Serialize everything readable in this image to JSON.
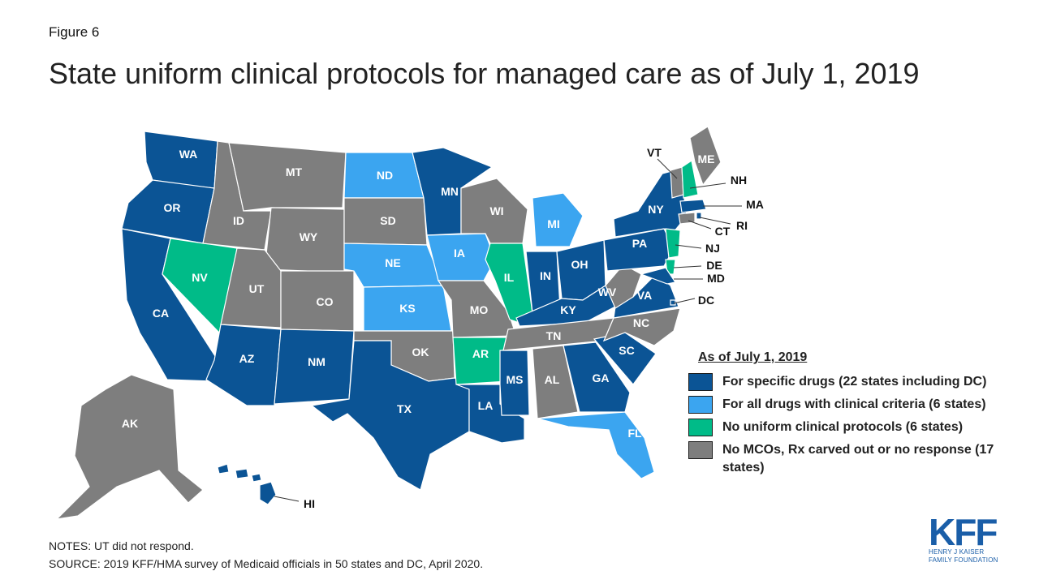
{
  "figure_label": "Figure 6",
  "title": "State uniform clinical protocols for managed care as of July 1, 2019",
  "colors": {
    "specific": "#0b5495",
    "all": "#3ba5f0",
    "none": "#00bb88",
    "nomco": "#7e7e7e",
    "border": "#1a1a1a"
  },
  "legend": {
    "title": "As of July 1, 2019",
    "items": [
      {
        "key": "specific",
        "label": "For specific drugs (22 states including DC)"
      },
      {
        "key": "all",
        "label": "For all drugs with clinical criteria (6 states)"
      },
      {
        "key": "none",
        "label": "No uniform clinical protocols (6 states)"
      },
      {
        "key": "nomco",
        "label": "No MCOs, Rx carved out or no response (17 states)"
      }
    ]
  },
  "states": {
    "WA": "specific",
    "OR": "specific",
    "CA": "specific",
    "NV": "none",
    "ID": "nomco",
    "MT": "nomco",
    "WY": "nomco",
    "UT": "nomco",
    "AZ": "specific",
    "CO": "nomco",
    "NM": "specific",
    "ND": "all",
    "SD": "nomco",
    "NE": "all",
    "KS": "all",
    "OK": "nomco",
    "TX": "specific",
    "MN": "specific",
    "IA": "all",
    "MO": "nomco",
    "AR": "none",
    "LA": "specific",
    "WI": "nomco",
    "IL": "none",
    "MI": "all",
    "IN": "specific",
    "OH": "specific",
    "KY": "specific",
    "TN": "nomco",
    "MS": "specific",
    "AL": "nomco",
    "GA": "specific",
    "FL": "all",
    "SC": "specific",
    "NC": "nomco",
    "VA": "specific",
    "WV": "nomco",
    "PA": "specific",
    "NY": "specific",
    "VT": "nomco",
    "NH": "none",
    "ME": "nomco",
    "MA": "specific",
    "RI": "specific",
    "CT": "nomco",
    "NJ": "none",
    "DE": "none",
    "MD": "specific",
    "DC": "specific",
    "AK": "nomco",
    "HI": "specific"
  },
  "notes": "NOTES: UT did not respond.",
  "source": "SOURCE: 2019 KFF/HMA survey of Medicaid officials in 50 states and DC, April 2020.",
  "logo": {
    "mark": "KFF",
    "line1": "HENRY J KAISER",
    "line2": "FAMILY FOUNDATION"
  }
}
